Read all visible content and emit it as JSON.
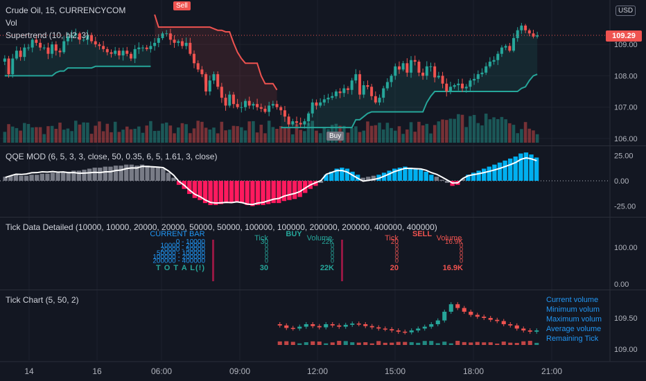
{
  "symbol_title": "Crude Oil, 15, CURRENCYCOM",
  "vol_label": "Vol",
  "supertrend_label": "Supertrend (10, hl2, 3)",
  "currency": "USD",
  "last_price": "109.29",
  "sell_label": "Sell",
  "buy_label": "Buy",
  "qqe_label": "QQE MOD (6, 5, 3, 3, close, 50, 0.35, 6, 5, 1.61, 3, close)",
  "tick_detail_label": "Tick Data Detailed (10000, 10000, 20000, 20000, 50000, 50000, 100000, 100000, 200000, 200000, 400000, 400000)",
  "tick_chart_label": "Tick Chart (5, 50, 2)",
  "tick_table": {
    "current_bar": "CURRENT BAR",
    "ranges": [
      "0 - 10000",
      "10000 - 20000",
      "20000 - 50000",
      "50000 - 100000",
      "100000 - 200000",
      "200000 - 400000"
    ],
    "total": "T O T A L(!)",
    "buy": "BUY",
    "sell": "SELL",
    "tick_header": "Tick",
    "volume_header": "Volume",
    "buy_tick_first": "30",
    "buy_volume_first": "22K",
    "buy_tick_total": "30",
    "buy_volume_total": "22K",
    "sell_tick_first": "20",
    "sell_volume_first": "16.9K",
    "sell_tick_total": "20",
    "sell_volume_total": "16.9K",
    "zero": "0"
  },
  "tick_stats": [
    "Current volume",
    "Minimum volum",
    "Maximum volum",
    "Average volume",
    "Remaining Tick"
  ],
  "colors": {
    "up": "#26a69a",
    "down": "#ef5350",
    "qqe_up": "#00b0f0",
    "qqe_down": "#ff1a5e",
    "qqe_gray": "#787b86",
    "supertrend_up": "#26a69a",
    "supertrend_down": "#ef5350",
    "background": "#131722"
  },
  "chart_data": [
    {
      "type": "candlestick",
      "title": "Crude Oil, 15, CURRENCYCOM",
      "x_ticks": [
        "14",
        "16",
        "06:00",
        "09:00",
        "12:00",
        "15:00",
        "18:00",
        "21:00"
      ],
      "y_ticks": [
        106.0,
        107.0,
        108.0,
        109.0
      ],
      "ylim": [
        105.9,
        110.0
      ],
      "last_price": 109.29,
      "closes": [
        108.55,
        108.05,
        108.55,
        108.8,
        108.6,
        108.9,
        108.9,
        109.15,
        109.05,
        108.9,
        108.9,
        108.7,
        109.0,
        108.8,
        108.75,
        109.1,
        109.25,
        109.3,
        109.35,
        109.15,
        109.15,
        109.3,
        109.1,
        109.0,
        108.95,
        108.85,
        108.75,
        108.7,
        108.8,
        108.65,
        108.8,
        108.7,
        108.55,
        108.85,
        108.9,
        108.9,
        108.85,
        108.95,
        109.05,
        109.2,
        109.35,
        109.35,
        109.15,
        109.05,
        109.1,
        108.95,
        109.05,
        108.7,
        108.4,
        108.2,
        108.05,
        107.5,
        107.85,
        108.05,
        107.65,
        107.3,
        107.05,
        107.4,
        107.1,
        107.0,
        107.0,
        107.2,
        107.05,
        107.1,
        107.0,
        106.95,
        106.85,
        107.05,
        107.1,
        107.0,
        106.9,
        106.7,
        106.45,
        106.55,
        106.5,
        106.45,
        106.55,
        106.8,
        107.15,
        107.05,
        107.15,
        107.25,
        107.3,
        107.35,
        107.5,
        107.45,
        107.6,
        107.55,
        107.85,
        108.05,
        107.4,
        107.7,
        107.65,
        107.35,
        107.15,
        107.3,
        107.6,
        107.8,
        108.0,
        108.3,
        108.2,
        108.4,
        108.1,
        108.5,
        108.45,
        108.1,
        108.0,
        108.3,
        108.3,
        107.95,
        108.0,
        107.75,
        107.5,
        107.65,
        107.7,
        107.75,
        107.6,
        107.65,
        107.85,
        107.9,
        108.05,
        108.1,
        108.3,
        108.45,
        108.5,
        108.7,
        108.9,
        108.95,
        108.8,
        109.2,
        109.45,
        109.6,
        109.45,
        109.35,
        109.25,
        109.29
      ],
      "supertrend": [
        {
          "from": 0,
          "to": 38,
          "values": "up",
          "start": 107.8,
          "end": 108.55
        },
        {
          "from": 38,
          "to": 70,
          "values": "down"
        },
        {
          "from": 70,
          "to": 137,
          "values": "up"
        }
      ]
    },
    {
      "type": "bar",
      "title": "QQE MOD (6, 5, 3, 3, close, 50, 0.35, 6, 5, 1.61, 3, close)",
      "y_ticks": [
        -25.0,
        0.0,
        25.0
      ],
      "ylim": [
        -32,
        30
      ],
      "values": [
        4,
        5,
        6,
        5,
        5,
        6,
        6,
        7,
        7,
        8,
        8,
        9,
        9,
        10,
        10,
        11,
        12,
        13,
        13,
        14,
        14,
        15,
        15,
        16,
        16,
        15,
        16,
        15,
        14,
        13,
        12,
        8,
        3,
        -4,
        -8,
        -13,
        -17,
        -19,
        -22,
        -24,
        -24,
        -23,
        -22,
        -22,
        -21,
        -22,
        -24,
        -25,
        -24,
        -24,
        -23,
        -22,
        -22,
        -20,
        -19,
        -18,
        -16,
        -12,
        -8,
        -5,
        -2,
        6,
        9,
        12,
        13,
        12,
        9,
        6,
        3,
        4,
        5,
        6,
        8,
        10,
        12,
        13,
        14,
        13,
        12,
        11,
        9,
        6,
        4,
        1,
        -2,
        -5,
        -4,
        2,
        6,
        8,
        10,
        12,
        14,
        16,
        18,
        20,
        22,
        24,
        27,
        28,
        26,
        23
      ]
    },
    {
      "type": "table",
      "title": "Tick Data Detailed",
      "y_ticks": [
        0.0,
        100.0
      ]
    },
    {
      "type": "candlestick",
      "title": "Tick Chart (5, 50, 2)",
      "y_ticks": [
        109.0,
        109.5
      ],
      "ylim": [
        108.88,
        109.85
      ]
    }
  ]
}
